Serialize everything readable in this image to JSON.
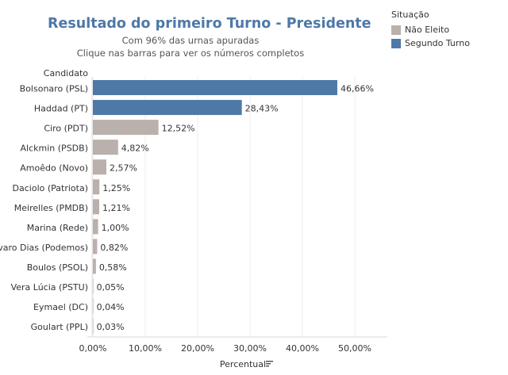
{
  "chart_data": {
    "type": "bar",
    "orientation": "horizontal",
    "title": "Resultado do primeiro Turno - Presidente",
    "subtitle": [
      "Com 96% das urnas apuradas",
      "Clique nas barras para ver os números completos"
    ],
    "ylabel": "Candidato",
    "xlabel": "Percentual",
    "xlim": [
      0,
      55
    ],
    "xticks": [
      0,
      10,
      20,
      30,
      40,
      50
    ],
    "xtick_labels": [
      "0,00%",
      "10,00%",
      "20,00%",
      "30,00%",
      "40,00%",
      "50,00%"
    ],
    "grid": "vertical",
    "legend": {
      "title": "Situação",
      "placement": "top-right",
      "entries": [
        {
          "name": "Não Eleito",
          "color": "#bab0ac"
        },
        {
          "name": "Segundo Turno",
          "color": "#4e79a7"
        }
      ]
    },
    "categories": [
      "Bolsonaro (PSL)",
      "Haddad (PT)",
      "Ciro (PDT)",
      "Alckmin (PSDB)",
      "Amoêdo (Novo)",
      "Daciolo (Patriota)",
      "Meirelles (PMDB)",
      "Marina (Rede)",
      "Alvaro Dias (Podemos)",
      "Boulos (PSOL)",
      "Vera Lúcia (PSTU)",
      "Eymael (DC)",
      "Goulart (PPL)"
    ],
    "values": [
      46.66,
      28.43,
      12.52,
      4.82,
      2.57,
      1.25,
      1.21,
      1.0,
      0.82,
      0.58,
      0.05,
      0.04,
      0.03
    ],
    "value_labels": [
      "46,66%",
      "28,43%",
      "12,52%",
      "4,82%",
      "2,57%",
      "1,25%",
      "1,21%",
      "1,00%",
      "0,82%",
      "0,58%",
      "0,05%",
      "0,04%",
      "0,03%"
    ],
    "status": [
      "Segundo Turno",
      "Segundo Turno",
      "Não Eleito",
      "Não Eleito",
      "Não Eleito",
      "Não Eleito",
      "Não Eleito",
      "Não Eleito",
      "Não Eleito",
      "Não Eleito",
      "Não Eleito",
      "Não Eleito",
      "Não Eleito"
    ]
  }
}
